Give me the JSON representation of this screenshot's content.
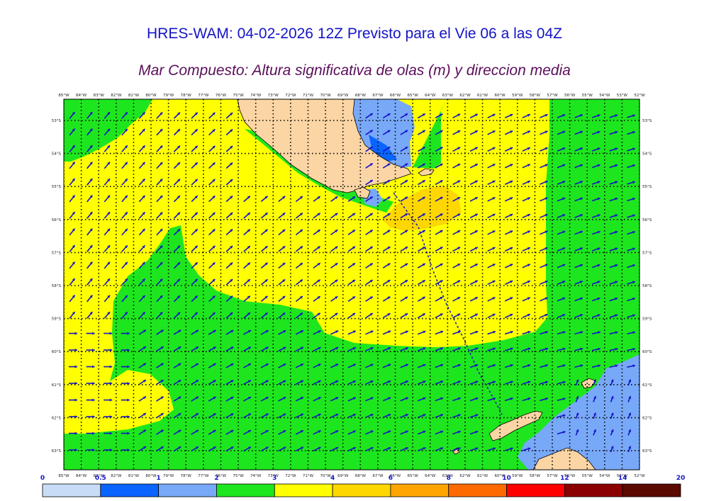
{
  "header": {
    "title": "HRES-WAM: 04-02-2026 12Z Previsto para el Vie 06 a las 04Z",
    "subtitle": "Mar Compuesto: Altura significativa de olas (m) y direccion media"
  },
  "axes": {
    "lon_labels": [
      "85°W",
      "84°W",
      "83°W",
      "82°W",
      "81°W",
      "80°W",
      "79°W",
      "78°W",
      "77°W",
      "76°W",
      "75°W",
      "74°W",
      "73°W",
      "72°W",
      "71°W",
      "70°W",
      "69°W",
      "68°W",
      "67°W",
      "66°W",
      "65°W",
      "64°W",
      "63°W",
      "62°W",
      "61°W",
      "60°W",
      "59°W",
      "58°W",
      "57°W",
      "56°W",
      "55°W",
      "54°W",
      "53°W",
      "52°W"
    ],
    "lat_labels": [
      "53°S",
      "54°S",
      "55°S",
      "56°S",
      "57°S",
      "58°S",
      "59°S",
      "60°S",
      "61°S",
      "62°S",
      "63°S"
    ]
  },
  "colorbar": {
    "labels": [
      "0",
      "0.5",
      "1",
      "2",
      "3",
      "4",
      "6",
      "8",
      "10",
      "12",
      "14",
      "20"
    ],
    "colors": [
      "#c8dcf8",
      "#0a64ff",
      "#78a8f8",
      "#1ee61e",
      "#ffff00",
      "#ffd700",
      "#ffa500",
      "#ff6a00",
      "#ff0000",
      "#8b0000",
      "#5a0a00",
      "#303030"
    ]
  },
  "colors": {
    "land": "#fbd5a4",
    "arrow": "#1414c8",
    "title": "#1414c8",
    "subtitle": "#5a0f5a"
  }
}
